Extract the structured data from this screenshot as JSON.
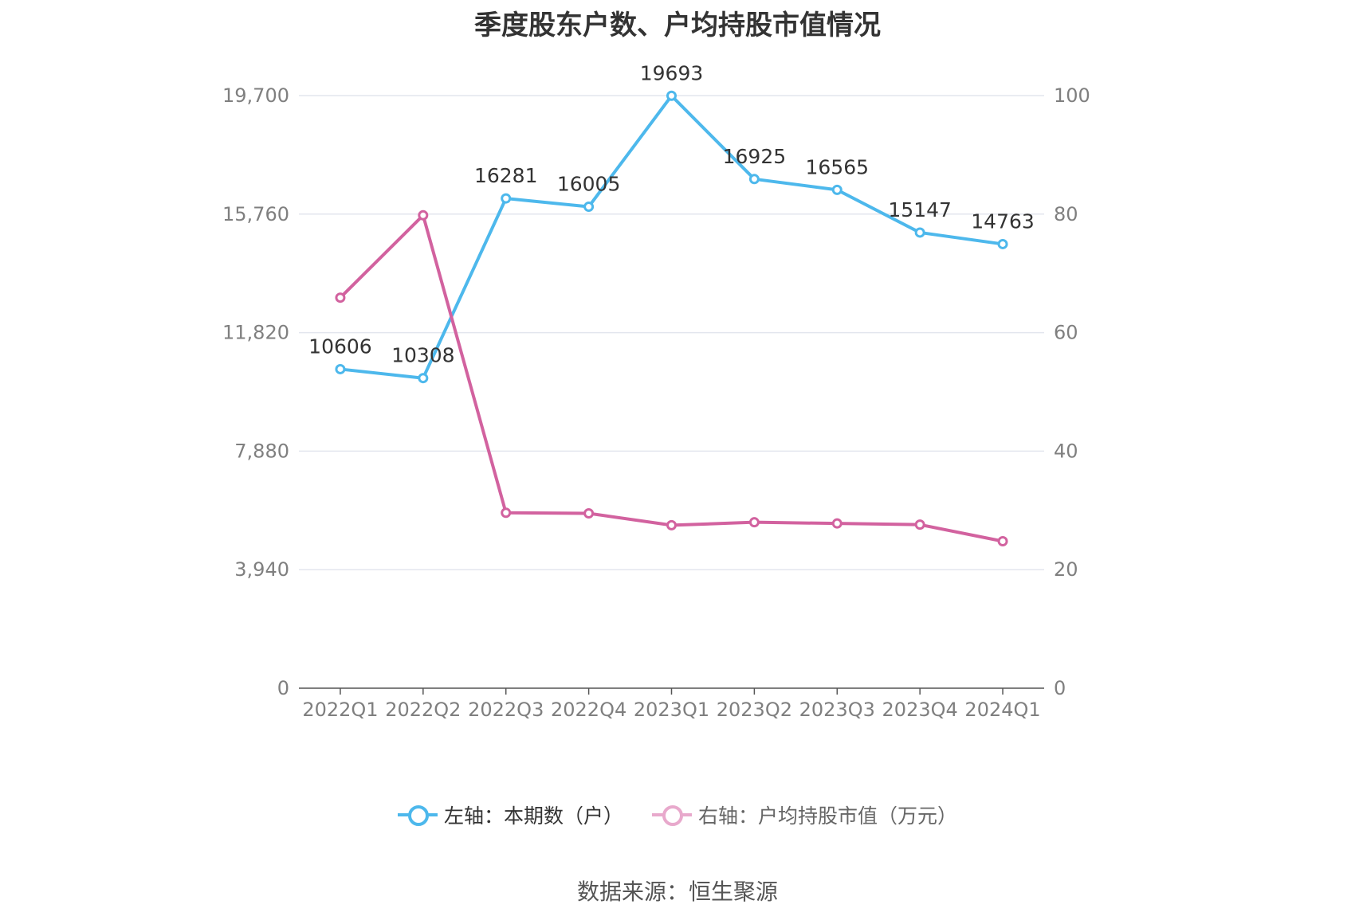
{
  "title": "季度股东户数、户均持股市值情况",
  "source": "数据来源：恒生聚源",
  "legend": {
    "left": "左轴：本期数（户）",
    "right": "右轴：户均持股市值（万元）"
  },
  "colors": {
    "left_series": "#4db8ec",
    "right_series": "#d2629f",
    "right_legend": "#e8a9cc",
    "grid": "#e3e6ee",
    "axis": "#555555"
  },
  "chart_data": {
    "type": "line",
    "categories": [
      "2022Q1",
      "2022Q2",
      "2022Q3",
      "2022Q4",
      "2023Q1",
      "2023Q2",
      "2023Q3",
      "2023Q4",
      "2024Q1"
    ],
    "series": [
      {
        "name": "左轴：本期数（户）",
        "axis": "left",
        "values": [
          10606,
          10308,
          16281,
          16005,
          19693,
          16925,
          16565,
          15147,
          14763
        ],
        "data_labels": [
          "10606",
          "10308",
          "16281",
          "16005",
          "19693",
          "16925",
          "16565",
          "15147",
          "14763"
        ]
      },
      {
        "name": "右轴：户均持股市值（万元）",
        "axis": "right",
        "values": [
          65.9,
          79.8,
          29.6,
          29.5,
          27.5,
          28.0,
          27.8,
          27.6,
          24.8
        ]
      }
    ],
    "left_axis": {
      "ticks": [
        "0",
        "3,940",
        "7,880",
        "11,820",
        "15,760",
        "19,700"
      ],
      "ylim": [
        0,
        19700
      ]
    },
    "right_axis": {
      "ticks": [
        "0",
        "20",
        "40",
        "60",
        "80",
        "100"
      ],
      "ylim": [
        0,
        100
      ]
    },
    "grid": true,
    "legend_position": "bottom"
  }
}
